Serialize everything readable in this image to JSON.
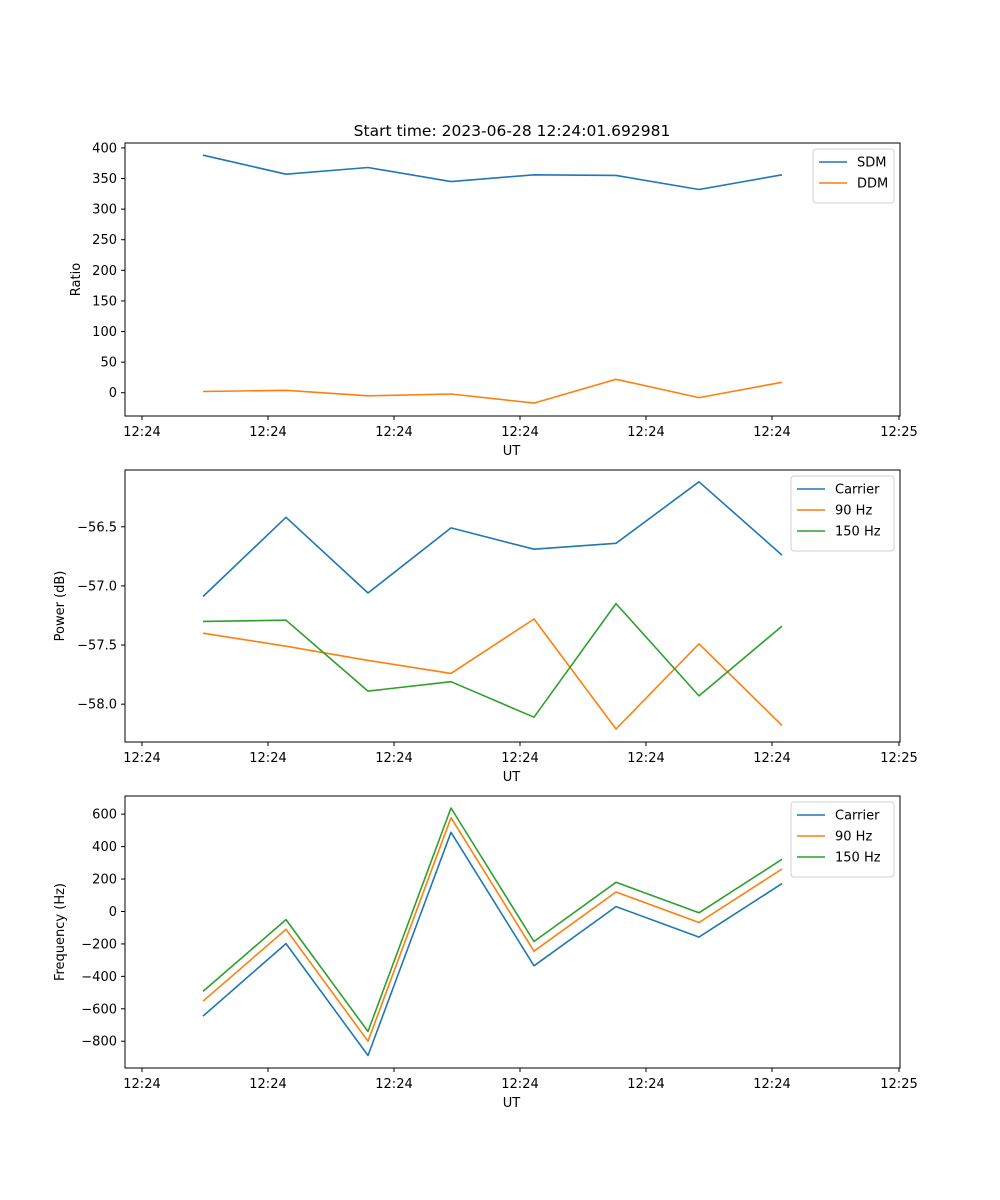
{
  "figure": {
    "title": "Start time: 2023-06-28 12:24:01.692981"
  },
  "chart_data": [
    {
      "type": "line",
      "title": "Start time: 2023-06-28 12:24:01.692981",
      "xlabel": "UT",
      "ylabel": "Ratio",
      "xticks": [
        "12:24",
        "12:24",
        "12:24",
        "12:24",
        "12:24",
        "12:24",
        "12:24",
        "12:25"
      ],
      "yticks": [
        0,
        50,
        100,
        150,
        200,
        250,
        300,
        350,
        400
      ],
      "ylim": [
        -38,
        408
      ],
      "grid": false,
      "legend": "top-right",
      "series": [
        {
          "name": "SDM",
          "color": "#1f77b4",
          "values": [
            388,
            357,
            368,
            345,
            356,
            355,
            332,
            356
          ]
        },
        {
          "name": "DDM",
          "color": "#ff7f0e",
          "values": [
            2,
            4,
            -5,
            -2,
            -17,
            22,
            -8,
            17
          ]
        }
      ]
    },
    {
      "type": "line",
      "title": "",
      "xlabel": "UT",
      "ylabel": "Power (dB)",
      "xticks": [
        "12:24",
        "12:24",
        "12:24",
        "12:24",
        "12:24",
        "12:24",
        "12:24",
        "12:25"
      ],
      "yticks": [
        -56.5,
        -57.0,
        -57.5,
        -58.0
      ],
      "ylim": [
        -58.32,
        -56.02
      ],
      "grid": false,
      "legend": "top-right",
      "series": [
        {
          "name": "Carrier",
          "color": "#1f77b4",
          "values": [
            -57.09,
            -56.42,
            -57.06,
            -56.51,
            -56.69,
            -56.64,
            -56.12,
            -56.74
          ]
        },
        {
          "name": "90 Hz",
          "color": "#ff7f0e",
          "values": [
            -57.4,
            -57.51,
            -57.63,
            -57.74,
            -57.28,
            -58.21,
            -57.49,
            -58.18
          ]
        },
        {
          "name": "150 Hz",
          "color": "#2ca02c",
          "values": [
            -57.3,
            -57.29,
            -57.89,
            -57.81,
            -58.11,
            -57.15,
            -57.93,
            -57.34
          ]
        }
      ]
    },
    {
      "type": "line",
      "title": "",
      "xlabel": "UT",
      "ylabel": "Frequency (Hz)",
      "xticks": [
        "12:24",
        "12:24",
        "12:24",
        "12:24",
        "12:24",
        "12:24",
        "12:24",
        "12:25"
      ],
      "yticks": [
        600,
        400,
        200,
        0,
        -200,
        -400,
        -600,
        -800
      ],
      "ylim": [
        -965,
        712
      ],
      "grid": false,
      "legend": "top-right",
      "series": [
        {
          "name": "Carrier",
          "color": "#1f77b4",
          "values": [
            -645,
            -198,
            -888,
            488,
            -335,
            30,
            -158,
            172
          ]
        },
        {
          "name": "90 Hz",
          "color": "#ff7f0e",
          "values": [
            -553,
            -110,
            -800,
            578,
            -245,
            120,
            -68,
            262
          ]
        },
        {
          "name": "150 Hz",
          "color": "#2ca02c",
          "values": [
            -493,
            -50,
            -740,
            638,
            -185,
            180,
            -8,
            322
          ]
        }
      ]
    }
  ]
}
